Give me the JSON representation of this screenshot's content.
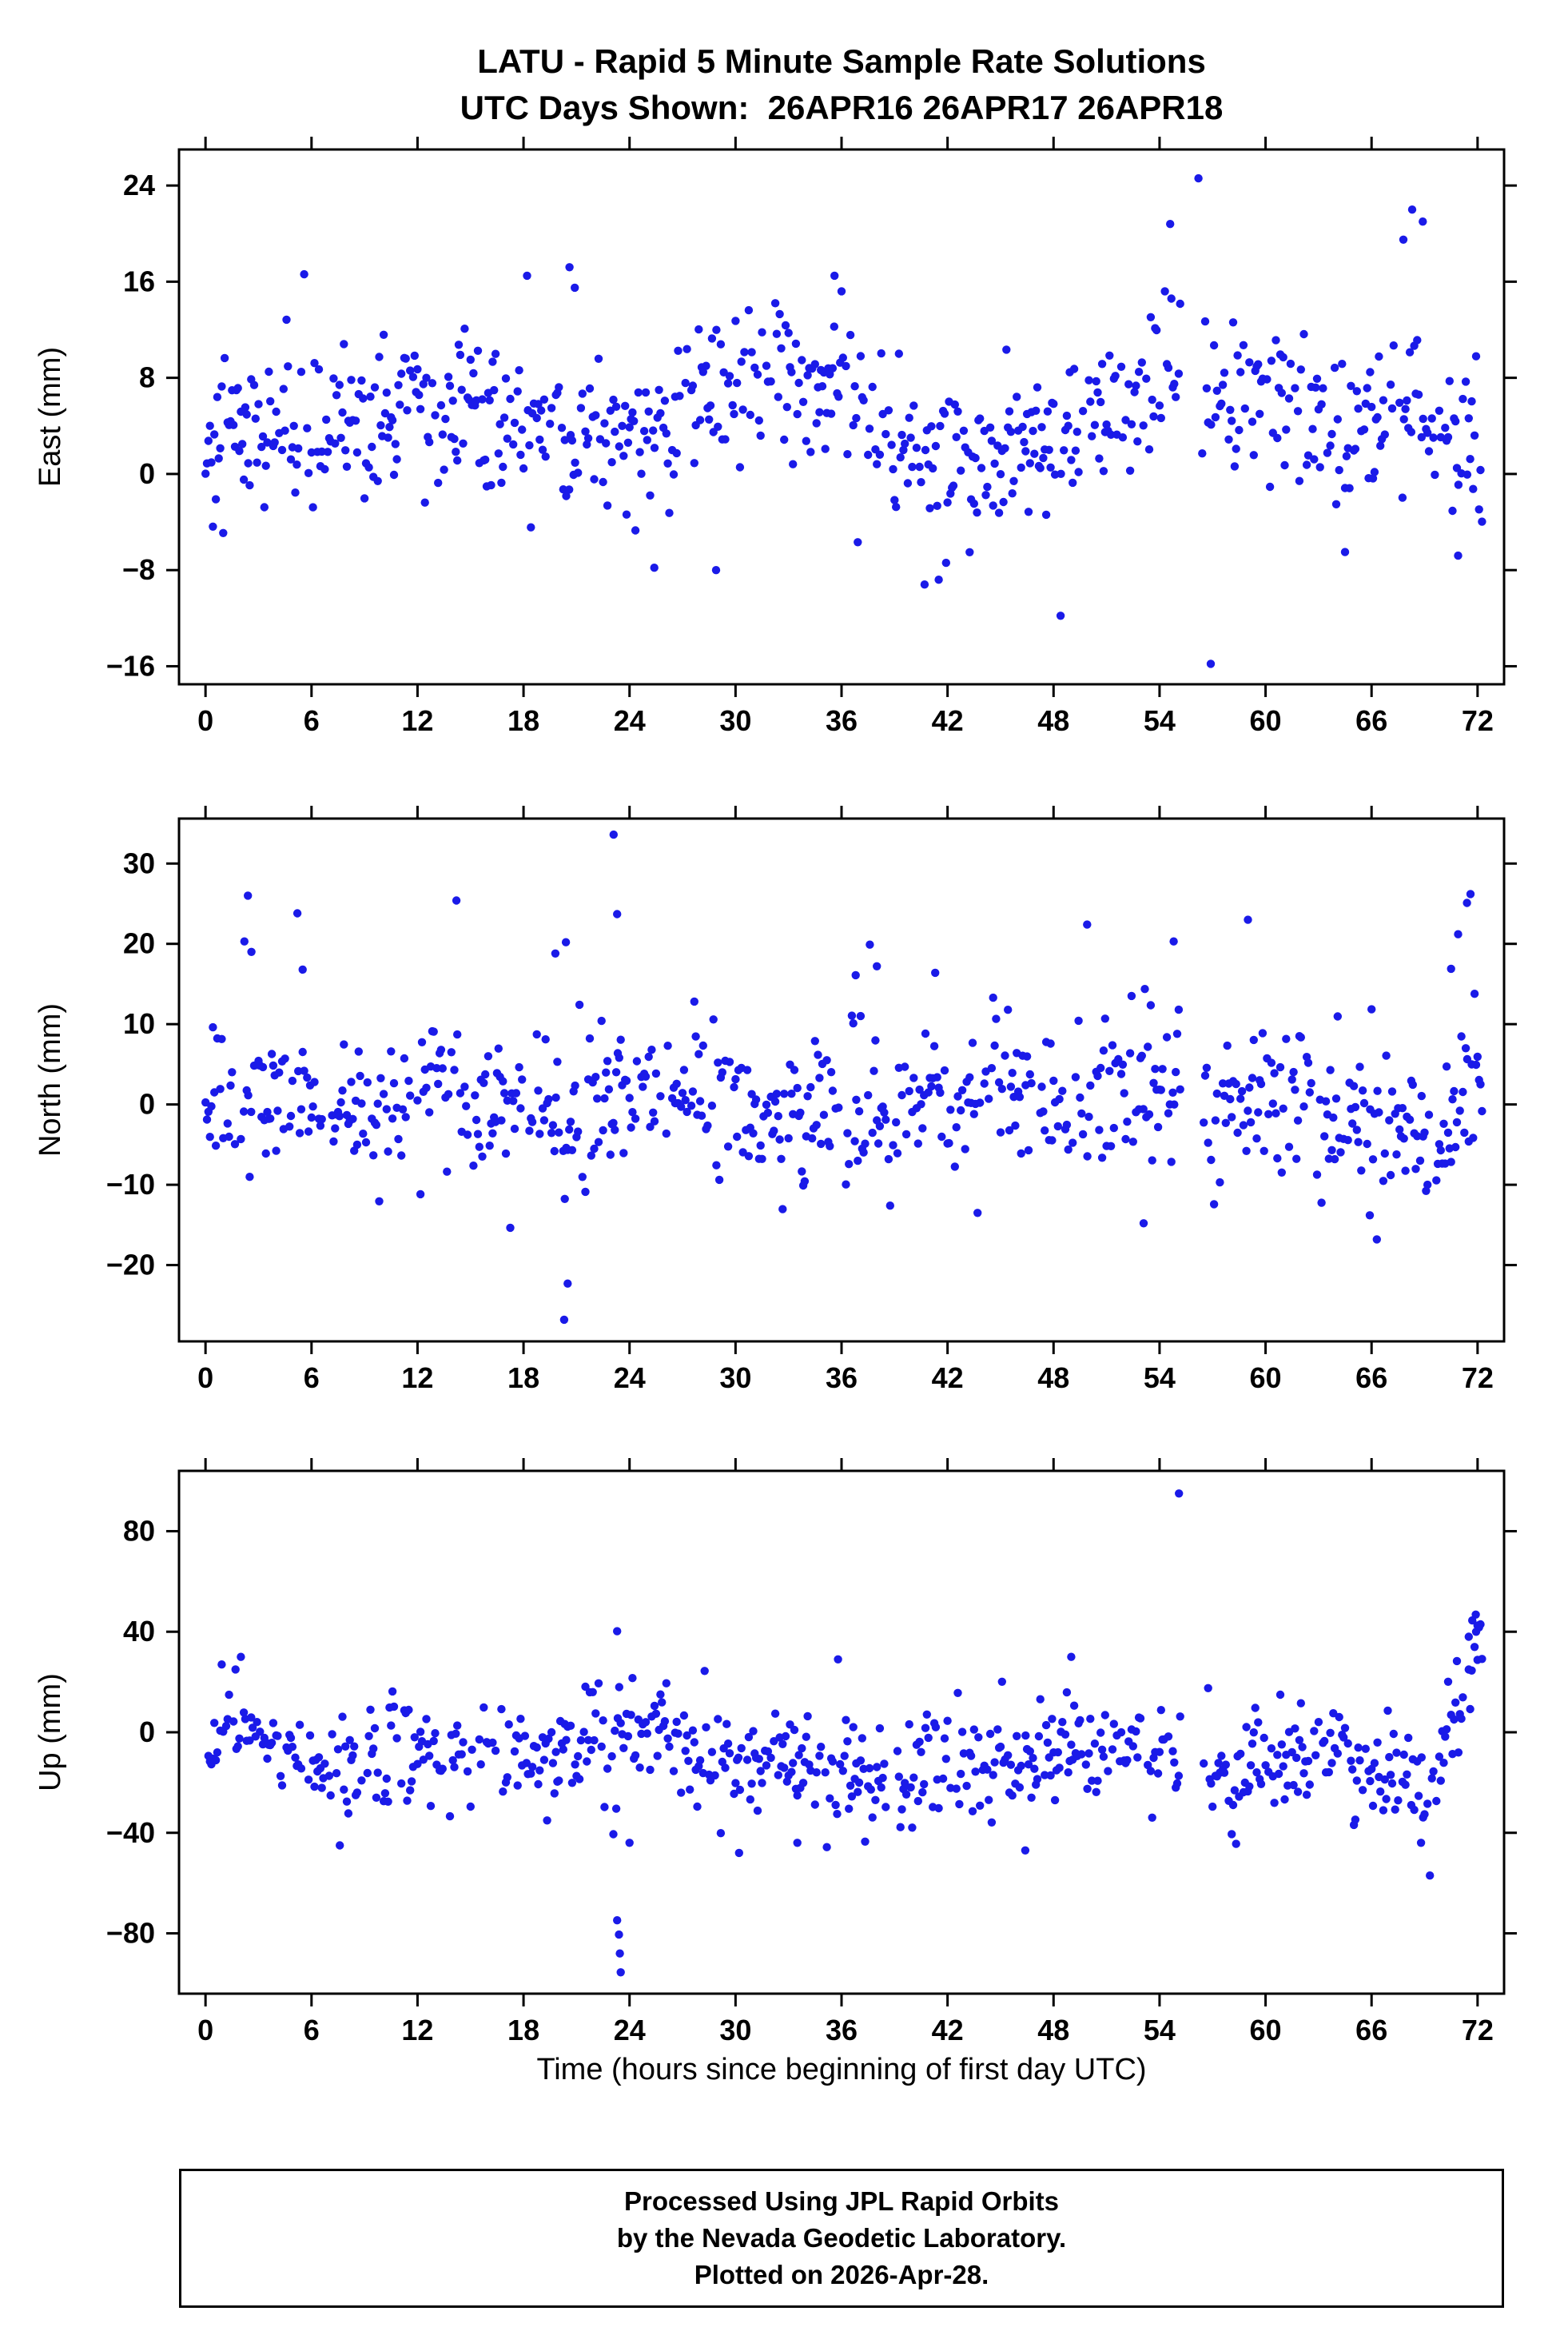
{
  "title": {
    "line1": "LATU - Rapid 5 Minute Sample Rate Solutions",
    "line2": "UTC Days Shown:  26APR16 26APR17 26APR18"
  },
  "xlabel": "Time (hours since beginning of first day UTC)",
  "footer": {
    "line1": "Processed Using JPL Rapid Orbits",
    "line2": "by the Nevada Geodetic Laboratory.",
    "line3": "Plotted on 2026-Apr-28."
  },
  "colors": {
    "points": "#1A1AE8",
    "frame": "#000000",
    "background": "#FFFFFF",
    "text": "#000000"
  },
  "chart_data": [
    {
      "type": "scatter",
      "name": "east",
      "ylabel": "East (mm)",
      "xlim": [
        -1.5,
        73.5
      ],
      "ylim": [
        -17.5,
        27
      ],
      "yticks": [
        -16,
        -8,
        0,
        8,
        16,
        24
      ],
      "xticks": [
        0,
        6,
        12,
        18,
        24,
        30,
        36,
        42,
        48,
        54,
        60,
        66,
        72
      ],
      "grid": false,
      "legend": false,
      "sampling": {
        "start": 0,
        "end": 72.25,
        "step": 0.083333,
        "keep_prob": 0.75,
        "seed": 101
      },
      "gaps": [
        [
          55.2,
          56.4
        ]
      ],
      "std": 3.5,
      "mean_anchors": [
        [
          0,
          2.5
        ],
        [
          2,
          4
        ],
        [
          4,
          4.5
        ],
        [
          6,
          5.5
        ],
        [
          8,
          6
        ],
        [
          10,
          5.5
        ],
        [
          12,
          4.5
        ],
        [
          14,
          4.5
        ],
        [
          16,
          4
        ],
        [
          18,
          3.5
        ],
        [
          19,
          5
        ],
        [
          21,
          3
        ],
        [
          23,
          2.5
        ],
        [
          25,
          2.5
        ],
        [
          27,
          5.5
        ],
        [
          29,
          8
        ],
        [
          31,
          8.5
        ],
        [
          33,
          8.5
        ],
        [
          35,
          7
        ],
        [
          37,
          5
        ],
        [
          39,
          2
        ],
        [
          41,
          0.5
        ],
        [
          43,
          1.5
        ],
        [
          45,
          2.5
        ],
        [
          47,
          2.5
        ],
        [
          49,
          3
        ],
        [
          51,
          5
        ],
        [
          53,
          6.5
        ],
        [
          55,
          8.5
        ],
        [
          56.5,
          5.5
        ],
        [
          58,
          6.5
        ],
        [
          60,
          7
        ],
        [
          62,
          5.5
        ],
        [
          64,
          4.5
        ],
        [
          66,
          3.5
        ],
        [
          68,
          4.5
        ],
        [
          70,
          4
        ],
        [
          72,
          2.5
        ]
      ],
      "outliers": [
        [
          18.2,
          16.5
        ],
        [
          20.6,
          17.2
        ],
        [
          20.9,
          15.5
        ],
        [
          35.6,
          16.5
        ],
        [
          36.0,
          15.2
        ],
        [
          54.6,
          20.8
        ],
        [
          54.3,
          15.2
        ],
        [
          56.2,
          24.6
        ],
        [
          56.9,
          -15.8
        ],
        [
          48.4,
          -11.8
        ],
        [
          40.7,
          -9.2
        ],
        [
          41.5,
          -8.8
        ],
        [
          25.4,
          -7.8
        ],
        [
          28.9,
          -8.0
        ],
        [
          68.3,
          22.0
        ],
        [
          68.9,
          21.0
        ],
        [
          67.8,
          19.5
        ],
        [
          64.5,
          -6.5
        ],
        [
          70.9,
          -6.8
        ]
      ]
    },
    {
      "type": "scatter",
      "name": "north",
      "ylabel": "North (mm)",
      "xlim": [
        -1.5,
        73.5
      ],
      "ylim": [
        -29.5,
        35.6
      ],
      "yticks": [
        -20,
        -10,
        0,
        10,
        20,
        30
      ],
      "xticks": [
        0,
        6,
        12,
        18,
        24,
        30,
        36,
        42,
        48,
        54,
        60,
        66,
        72
      ],
      "grid": false,
      "legend": false,
      "sampling": {
        "start": 0,
        "end": 72.25,
        "step": 0.083333,
        "keep_prob": 0.75,
        "seed": 202
      },
      "gaps": [
        [
          55.2,
          56.4
        ]
      ],
      "std": 4.8,
      "mean_anchors": [
        [
          0,
          0
        ],
        [
          2,
          1.5
        ],
        [
          4,
          0.5
        ],
        [
          6,
          0.5
        ],
        [
          8,
          -1
        ],
        [
          10,
          0
        ],
        [
          12,
          0
        ],
        [
          14,
          0.5
        ],
        [
          16,
          -0.5
        ],
        [
          18,
          -1
        ],
        [
          20,
          -2
        ],
        [
          22,
          0
        ],
        [
          24,
          1.5
        ],
        [
          26,
          2.5
        ],
        [
          28,
          1.5
        ],
        [
          30,
          0.5
        ],
        [
          32,
          -1.5
        ],
        [
          34,
          -1
        ],
        [
          36,
          0.5
        ],
        [
          38,
          1
        ],
        [
          40,
          0
        ],
        [
          42,
          -0.5
        ],
        [
          44,
          0
        ],
        [
          46,
          0.5
        ],
        [
          48,
          1.5
        ],
        [
          50,
          2
        ],
        [
          52,
          2
        ],
        [
          54,
          2.5
        ],
        [
          56.5,
          0
        ],
        [
          58,
          0.5
        ],
        [
          60,
          0.5
        ],
        [
          62,
          0
        ],
        [
          64,
          0
        ],
        [
          66,
          -1.5
        ],
        [
          68,
          -2
        ],
        [
          70,
          -2.5
        ],
        [
          72,
          4
        ]
      ],
      "outliers": [
        [
          2.2,
          20.3
        ],
        [
          2.4,
          26.0
        ],
        [
          2.6,
          19.0
        ],
        [
          5.2,
          23.8
        ],
        [
          5.5,
          16.8
        ],
        [
          14.2,
          25.4
        ],
        [
          20.3,
          -26.8
        ],
        [
          20.5,
          -22.3
        ],
        [
          20.4,
          20.2
        ],
        [
          19.8,
          18.8
        ],
        [
          23.1,
          33.6
        ],
        [
          23.3,
          23.7
        ],
        [
          37.6,
          19.9
        ],
        [
          38.0,
          17.2
        ],
        [
          36.8,
          16.1
        ],
        [
          41.3,
          16.4
        ],
        [
          43.7,
          -13.5
        ],
        [
          49.9,
          22.4
        ],
        [
          53.1,
          -14.8
        ],
        [
          54.8,
          20.3
        ],
        [
          59.0,
          23.0
        ],
        [
          66.3,
          -16.8
        ],
        [
          65.9,
          -13.8
        ],
        [
          70.9,
          21.2
        ],
        [
          71.4,
          25.1
        ],
        [
          71.6,
          26.2
        ],
        [
          70.5,
          16.9
        ]
      ]
    },
    {
      "type": "scatter",
      "name": "up",
      "ylabel": "Up (mm)",
      "xlim": [
        -1.5,
        73.5
      ],
      "ylim": [
        -104,
        104
      ],
      "yticks": [
        -80,
        -40,
        0,
        40,
        80
      ],
      "xticks": [
        0,
        6,
        12,
        18,
        24,
        30,
        36,
        42,
        48,
        54,
        60,
        66,
        72
      ],
      "grid": false,
      "legend": false,
      "sampling": {
        "start": 0,
        "end": 72.25,
        "step": 0.083333,
        "keep_prob": 0.75,
        "seed": 303
      },
      "gaps": [
        [
          55.2,
          56.4
        ]
      ],
      "std": 11,
      "mean_anchors": [
        [
          0,
          -2
        ],
        [
          1.5,
          3
        ],
        [
          3,
          -2
        ],
        [
          5,
          -10
        ],
        [
          7,
          -14
        ],
        [
          9,
          -8
        ],
        [
          11,
          -6
        ],
        [
          13,
          -8
        ],
        [
          15,
          -7
        ],
        [
          17,
          -6
        ],
        [
          19,
          -8
        ],
        [
          21,
          -6
        ],
        [
          23,
          -3
        ],
        [
          24,
          2
        ],
        [
          25,
          -4
        ],
        [
          27,
          -7
        ],
        [
          29,
          -10
        ],
        [
          31,
          -13
        ],
        [
          33,
          -16
        ],
        [
          35,
          -16
        ],
        [
          37,
          -14
        ],
        [
          39,
          -16
        ],
        [
          41,
          -17
        ],
        [
          43,
          -14
        ],
        [
          45,
          -13
        ],
        [
          47,
          -14
        ],
        [
          49,
          -8
        ],
        [
          51,
          -6
        ],
        [
          53,
          -7
        ],
        [
          55,
          -6
        ],
        [
          56.5,
          -16
        ],
        [
          58,
          -18
        ],
        [
          60,
          -14
        ],
        [
          62,
          -10
        ],
        [
          64,
          -9
        ],
        [
          66,
          -13
        ],
        [
          68,
          -19
        ],
        [
          69,
          -22
        ],
        [
          70,
          -8
        ],
        [
          71,
          12
        ],
        [
          72,
          33
        ]
      ],
      "outliers": [
        [
          2.0,
          30
        ],
        [
          1.7,
          25
        ],
        [
          7.6,
          -45
        ],
        [
          23.3,
          40.2
        ],
        [
          23.3,
          -74.8
        ],
        [
          23.4,
          -80.5
        ],
        [
          23.45,
          -88.0
        ],
        [
          23.5,
          -95.5
        ],
        [
          24.0,
          -44
        ],
        [
          30.2,
          -48
        ],
        [
          33.5,
          -44
        ],
        [
          46.4,
          -47
        ],
        [
          55.1,
          95.0
        ],
        [
          49.0,
          30
        ],
        [
          35.8,
          29
        ],
        [
          69.3,
          -57.0
        ],
        [
          68.8,
          -44
        ],
        [
          71.7,
          44.5
        ],
        [
          71.9,
          46.8
        ],
        [
          72.0,
          42.5
        ],
        [
          71.5,
          38
        ]
      ]
    }
  ]
}
